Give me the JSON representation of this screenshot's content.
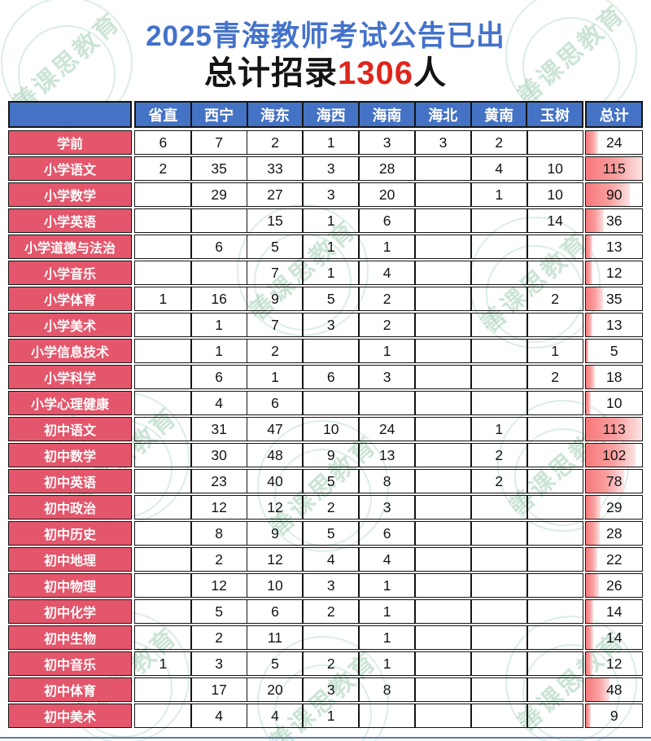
{
  "header": {
    "title": "2025青海教师考试公告已出",
    "subtitle_prefix": "总计招录",
    "subtitle_number": "1306",
    "subtitle_suffix": "人"
  },
  "watermark": {
    "text": "善课思教育"
  },
  "colors": {
    "title_blue": "#4472CB",
    "accent_red": "#E0251B",
    "header_bg": "#4472C4",
    "row_label_bg": "#E4566B",
    "bar_gradient_start": "#F7797B",
    "bar_gradient_end": "#FCE3E3",
    "watermark_green": "#7AB894",
    "border_black": "#151515",
    "bottom_line_blue": "#5F7FA8"
  },
  "chart_data": {
    "type": "table",
    "title": "2025青海教师考试公告已出",
    "subtitle": "总计招录1306人",
    "corner_label": "",
    "columns": [
      "省直",
      "西宁",
      "海东",
      "海西",
      "海南",
      "海北",
      "黄南",
      "玉树",
      "总计"
    ],
    "total_column_max": 115,
    "rows": [
      {
        "label": "学前",
        "values": [
          "6",
          "7",
          "2",
          "1",
          "3",
          "3",
          "2",
          ""
        ],
        "total": 24
      },
      {
        "label": "小学语文",
        "values": [
          "2",
          "35",
          "33",
          "3",
          "28",
          "",
          "4",
          "10"
        ],
        "total": 115
      },
      {
        "label": "小学数学",
        "values": [
          "",
          "29",
          "27",
          "3",
          "20",
          "",
          "1",
          "10"
        ],
        "total": 90
      },
      {
        "label": "小学英语",
        "values": [
          "",
          "",
          "15",
          "1",
          "6",
          "",
          "",
          "14"
        ],
        "total": 36
      },
      {
        "label": "小学道德与法治",
        "values": [
          "",
          "6",
          "5",
          "1",
          "1",
          "",
          "",
          ""
        ],
        "total": 13
      },
      {
        "label": "小学音乐",
        "values": [
          "",
          "",
          "7",
          "1",
          "4",
          "",
          "",
          ""
        ],
        "total": 12
      },
      {
        "label": "小学体育",
        "values": [
          "1",
          "16",
          "9",
          "5",
          "2",
          "",
          "",
          "2"
        ],
        "total": 35
      },
      {
        "label": "小学美术",
        "values": [
          "",
          "1",
          "7",
          "3",
          "2",
          "",
          "",
          ""
        ],
        "total": 13
      },
      {
        "label": "小学信息技术",
        "values": [
          "",
          "1",
          "2",
          "",
          "1",
          "",
          "",
          "1"
        ],
        "total": 5
      },
      {
        "label": "小学科学",
        "values": [
          "",
          "6",
          "1",
          "6",
          "3",
          "",
          "",
          "2"
        ],
        "total": 18
      },
      {
        "label": "小学心理健康",
        "values": [
          "",
          "4",
          "6",
          "",
          "",
          "",
          "",
          ""
        ],
        "total": 10
      },
      {
        "label": "初中语文",
        "values": [
          "",
          "31",
          "47",
          "10",
          "24",
          "",
          "1",
          ""
        ],
        "total": 113
      },
      {
        "label": "初中数学",
        "values": [
          "",
          "30",
          "48",
          "9",
          "13",
          "",
          "2",
          ""
        ],
        "total": 102
      },
      {
        "label": "初中英语",
        "values": [
          "",
          "23",
          "40",
          "5",
          "8",
          "",
          "2",
          ""
        ],
        "total": 78
      },
      {
        "label": "初中政治",
        "values": [
          "",
          "12",
          "12",
          "2",
          "3",
          "",
          "",
          ""
        ],
        "total": 29
      },
      {
        "label": "初中历史",
        "values": [
          "",
          "8",
          "9",
          "5",
          "6",
          "",
          "",
          ""
        ],
        "total": 28
      },
      {
        "label": "初中地理",
        "values": [
          "",
          "2",
          "12",
          "4",
          "4",
          "",
          "",
          ""
        ],
        "total": 22
      },
      {
        "label": "初中物理",
        "values": [
          "",
          "12",
          "10",
          "3",
          "1",
          "",
          "",
          ""
        ],
        "total": 26
      },
      {
        "label": "初中化学",
        "values": [
          "",
          "5",
          "6",
          "2",
          "1",
          "",
          "",
          ""
        ],
        "total": 14
      },
      {
        "label": "初中生物",
        "values": [
          "",
          "2",
          "11",
          "",
          "1",
          "",
          "",
          ""
        ],
        "total": 14
      },
      {
        "label": "初中音乐",
        "values": [
          "1",
          "3",
          "5",
          "2",
          "1",
          "",
          "",
          ""
        ],
        "total": 12
      },
      {
        "label": "初中体育",
        "values": [
          "",
          "17",
          "20",
          "3",
          "8",
          "",
          "",
          ""
        ],
        "total": 48
      },
      {
        "label": "初中美术",
        "values": [
          "",
          "4",
          "4",
          "1",
          "",
          "",
          "",
          ""
        ],
        "total": 9
      }
    ]
  }
}
